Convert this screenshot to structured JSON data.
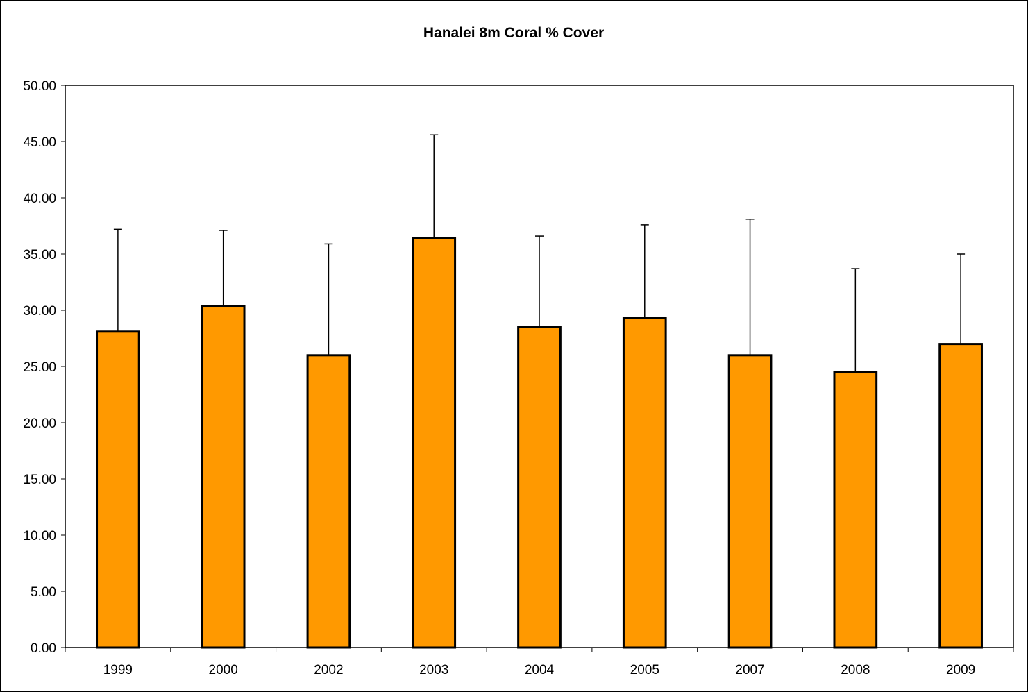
{
  "chart_data": {
    "type": "bar",
    "title": "Hanalei 8m Coral % Cover",
    "xlabel": "",
    "ylabel": "",
    "categories": [
      "1999",
      "2000",
      "2002",
      "2003",
      "2004",
      "2005",
      "2007",
      "2008",
      "2009"
    ],
    "values": [
      28.1,
      30.4,
      26.0,
      36.4,
      28.5,
      29.3,
      26.0,
      24.5,
      27.0
    ],
    "error_upper": [
      37.2,
      37.1,
      35.9,
      45.6,
      36.6,
      37.6,
      38.1,
      33.7,
      35.0
    ],
    "ylim": [
      0,
      50
    ],
    "yticks": [
      "0.00",
      "5.00",
      "10.00",
      "15.00",
      "20.00",
      "25.00",
      "30.00",
      "35.00",
      "40.00",
      "45.00",
      "50.00"
    ],
    "grid": false,
    "legend": "none",
    "colors": {
      "bar_fill": "#FF9900",
      "bar_stroke": "#000000",
      "axis": "#000000",
      "background": "#FFFFFF"
    }
  }
}
